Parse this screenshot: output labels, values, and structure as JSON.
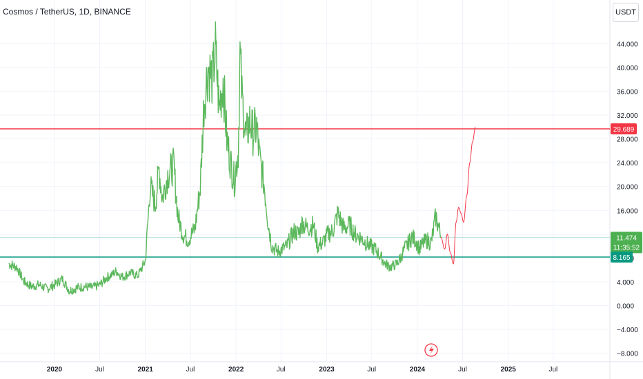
{
  "header": {
    "title": "Cosmos / TetherUS, 1D, BINANCE",
    "currency_button": "USDT"
  },
  "price_labels": {
    "resistance": "29.689",
    "current": "11.474",
    "countdown": "11:35:52",
    "support": "8.165"
  },
  "colors": {
    "price_line": "#5cb85c",
    "resistance": "#f23645",
    "support": "#089981",
    "projection": "#f23645",
    "current_label": "#4caf50",
    "current_line": "#b2dfdb",
    "grid": "#f0f3fa",
    "axis_text": "#131722"
  },
  "events_icon": "lightning-bolt-icon",
  "chart_data": {
    "type": "line",
    "title": "Cosmos / TetherUS, 1D, BINANCE",
    "xlabel": "",
    "ylabel": "",
    "ylim": [
      -9,
      50
    ],
    "grid": true,
    "x_ticks": [
      "2020",
      "Jul",
      "2021",
      "Jul",
      "2022",
      "Jul",
      "2023",
      "Jul",
      "2024",
      "Jul",
      "2025",
      "Jul"
    ],
    "y_ticks": [
      "44.000",
      "40.000",
      "36.000",
      "32.000",
      "28.000",
      "24.000",
      "20.000",
      "16.000",
      "12.000",
      "8.000",
      "4.000",
      "0.000",
      "−4.000",
      "−8.000"
    ],
    "series": [
      {
        "x": [
          "2019-07-01",
          "2019-08-01",
          "2019-09-01",
          "2019-10-01",
          "2019-11-01",
          "2019-12-01",
          "2020-01-01",
          "2020-02-01",
          "2020-03-01",
          "2020-04-01",
          "2020-05-01",
          "2020-06-01",
          "2020-07-01",
          "2020-08-01",
          "2020-08-20",
          "2020-09-05",
          "2020-10-01",
          "2020-11-01",
          "2020-12-01",
          "2021-01-01",
          "2021-01-20",
          "2021-02-10",
          "2021-02-25",
          "2021-03-10",
          "2021-04-01",
          "2021-04-25",
          "2021-05-12",
          "2021-06-01",
          "2021-06-22",
          "2021-07-20",
          "2021-08-10",
          "2021-08-25",
          "2021-09-10",
          "2021-09-28",
          "2021-10-10",
          "2021-10-25",
          "2021-11-10",
          "2021-11-25",
          "2021-12-10",
          "2021-12-25",
          "2022-01-10",
          "2022-01-17",
          "2022-01-25",
          "2022-02-10",
          "2022-02-25",
          "2022-03-10",
          "2022-03-25",
          "2022-04-05",
          "2022-04-25",
          "2022-05-10",
          "2022-05-25",
          "2022-06-18",
          "2022-07-05",
          "2022-07-25",
          "2022-08-10",
          "2022-08-25",
          "2022-09-10",
          "2022-09-25",
          "2022-10-15",
          "2022-11-09",
          "2022-11-25",
          "2022-12-15",
          "2023-01-05",
          "2023-01-25",
          "2023-02-15",
          "2023-03-10",
          "2023-04-05",
          "2023-04-25",
          "2023-05-15",
          "2023-06-10",
          "2023-06-25",
          "2023-07-15",
          "2023-08-10",
          "2023-08-25",
          "2023-09-15",
          "2023-10-10",
          "2023-10-25",
          "2023-11-10",
          "2023-11-25",
          "2023-12-10",
          "2023-12-25",
          "2024-01-10",
          "2024-01-25",
          "2024-02-10",
          "2024-02-25",
          "2024-03-05",
          "2024-03-15",
          "2024-03-28",
          "2024-04-05"
        ],
        "y": [
          7.0,
          6.5,
          4.0,
          3.2,
          3.5,
          2.8,
          3.5,
          4.5,
          2.5,
          3.0,
          3.2,
          3.0,
          3.5,
          4.8,
          5.2,
          5.8,
          4.8,
          5.5,
          5.0,
          7.5,
          20.0,
          17.0,
          23.0,
          18.0,
          22.0,
          23.5,
          15.0,
          12.0,
          11.0,
          13.0,
          20.0,
          34.0,
          40.0,
          38.0,
          43.0,
          33.0,
          38.0,
          28.0,
          24.0,
          21.0,
          26.0,
          42.0,
          35.0,
          28.0,
          31.0,
          29.0,
          30.0,
          25.0,
          20.0,
          14.0,
          10.0,
          9.0,
          9.5,
          10.0,
          11.5,
          12.5,
          12.0,
          14.0,
          13.0,
          13.5,
          10.0,
          10.5,
          12.0,
          12.5,
          15.5,
          13.0,
          13.5,
          12.0,
          11.5,
          10.5,
          10.0,
          9.5,
          8.0,
          7.0,
          6.5,
          7.0,
          8.0,
          9.5,
          10.5,
          11.5,
          11.0,
          9.5,
          10.5,
          11.0,
          10.5,
          12.5,
          15.0,
          13.0,
          11.5
        ]
      },
      {
        "name": "projection",
        "x": [
          "2024-04-05",
          "2024-04-20",
          "2024-05-01",
          "2024-05-12",
          "2024-05-25",
          "2024-06-05",
          "2024-06-15",
          "2024-06-25",
          "2024-07-05",
          "2024-07-18",
          "2024-07-30",
          "2024-08-10",
          "2024-08-22"
        ],
        "y": [
          11.5,
          9.5,
          12.0,
          9.0,
          7.0,
          14.0,
          16.5,
          15.5,
          14.0,
          18.5,
          24.0,
          27.5,
          30.0
        ]
      }
    ],
    "horizontal_lines": [
      {
        "value": 29.689,
        "label": "29.689"
      },
      {
        "value": 11.474,
        "label": "11.474"
      },
      {
        "value": 8.165,
        "label": "8.165"
      }
    ]
  }
}
